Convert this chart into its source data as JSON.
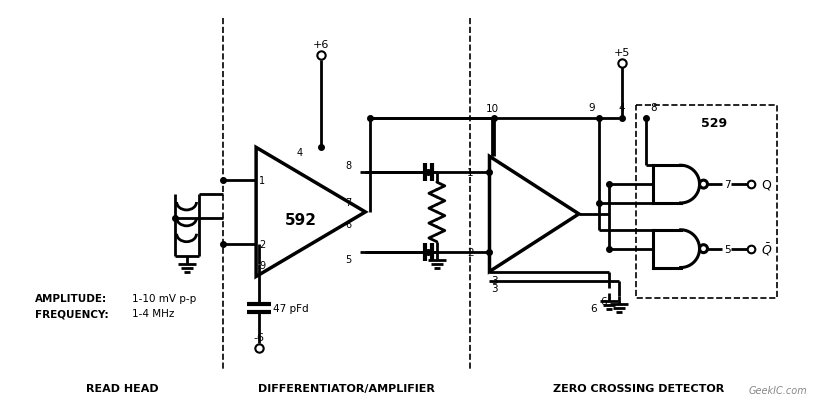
{
  "bg_color": "#ffffff",
  "line_color": "#000000",
  "section_labels": [
    "READ HEAD",
    "DIFFERENTIATOR/AMPLIFIER",
    "ZERO CROSSING DETECTOR"
  ],
  "amplitude_label": "AMPLITUDE:",
  "frequency_label": "FREQUENCY:",
  "amplitude_value": "1-10 mV p-p",
  "frequency_value": "1-4 MHz",
  "cap_label": "47 pFd",
  "ic_label": "592",
  "ic2_label": "529",
  "vplus6_label": "+6",
  "vminus6_label": "-6",
  "vplus5_label": "+5",
  "geekic_text": "GeekIC.com"
}
